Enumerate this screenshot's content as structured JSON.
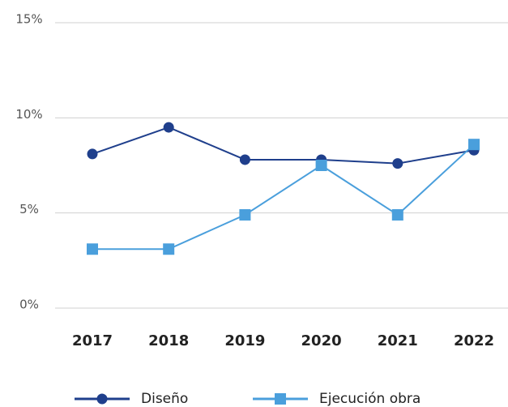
{
  "chart_data": {
    "type": "line",
    "categories": [
      "2017",
      "2018",
      "2019",
      "2020",
      "2021",
      "2022"
    ],
    "series": [
      {
        "name": "Diseño",
        "color": "#1f3f8c",
        "marker": "circle",
        "values": [
          8.1,
          9.5,
          7.8,
          7.8,
          7.6,
          8.3
        ]
      },
      {
        "name": "Ejecución obra",
        "color": "#4a9fdc",
        "marker": "square",
        "values": [
          3.1,
          3.1,
          4.9,
          7.5,
          4.9,
          8.6
        ]
      }
    ],
    "ylim": [
      0,
      15
    ],
    "yticks": [
      {
        "value": 0,
        "label": "0%"
      },
      {
        "value": 5,
        "label": "5%"
      },
      {
        "value": 10,
        "label": "10%"
      },
      {
        "value": 15,
        "label": "15%"
      }
    ],
    "grid": true,
    "legend": "bottom"
  }
}
